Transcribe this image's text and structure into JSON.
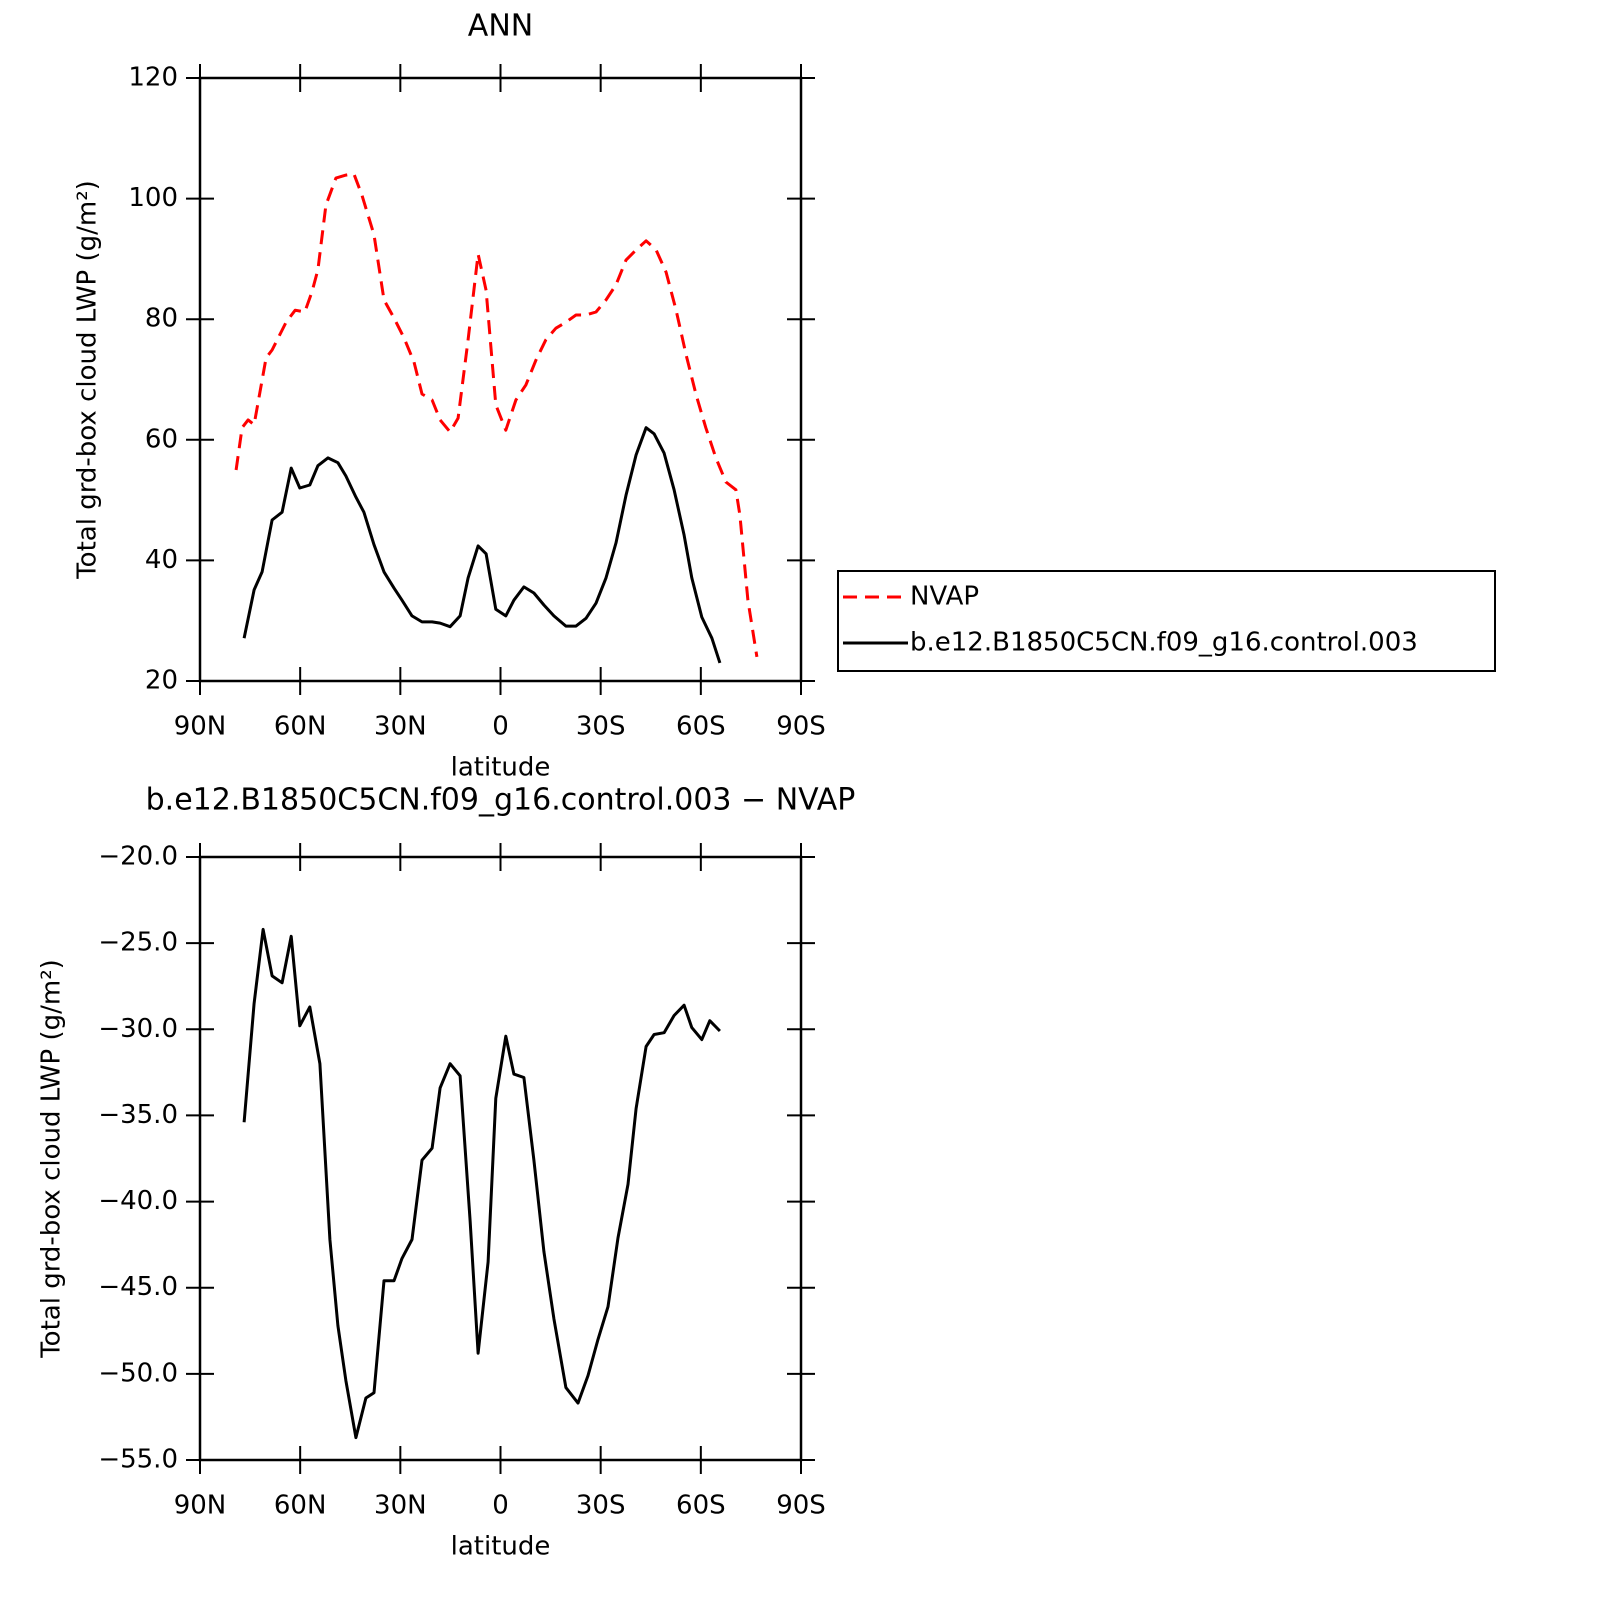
{
  "chart_data": [
    {
      "type": "line",
      "title": "ANN",
      "xlabel": "latitude",
      "ylabel": "Total grd-box cloud LWP (g/m²)",
      "xlim": [
        90,
        -90
      ],
      "xticks": [
        {
          "value": 90,
          "label": "90N"
        },
        {
          "value": 60,
          "label": "60N"
        },
        {
          "value": 30,
          "label": "30N"
        },
        0,
        {
          "value": -30,
          "label": "30S"
        },
        {
          "value": -60,
          "label": "60S"
        },
        {
          "value": -90,
          "label": "90S"
        }
      ],
      "ylim": [
        20,
        120
      ],
      "yticks": [
        20,
        40,
        60,
        80,
        100,
        120
      ],
      "legend": "right",
      "series": [
        {
          "name": "NVAP",
          "color": "#ff0000",
          "style": "dashed",
          "x": [
            79.2,
            77.4,
            75.6,
            73.8,
            70.2,
            68.4,
            64.2,
            61.5,
            58.6,
            56.5,
            54.7,
            52.3,
            49.3,
            46.3,
            43.9,
            41.5,
            37.9,
            34.9,
            31.9,
            28.9,
            25.9,
            23.5,
            20.5,
            18.1,
            15.1,
            12.7,
            9.7,
            6.7,
            4.3,
            1.4,
            -1.6,
            -4.6,
            -7.6,
            -10.6,
            -13.6,
            -16.6,
            -19.6,
            -22.6,
            -25.6,
            -28.6,
            -31.6,
            -34.6,
            -37.6,
            -40.6,
            -43.6,
            -46.6,
            -49.6,
            -52.6,
            -55.6,
            -58.6,
            -61.5,
            -64.5,
            -67.5,
            -70.5,
            -71.7,
            -74.1,
            -76.8
          ],
          "values": [
            55.0,
            62.0,
            63.3,
            62.5,
            73.6,
            74.9,
            79.5,
            81.5,
            81.2,
            84.5,
            88.2,
            98.9,
            103.4,
            103.9,
            104.1,
            100.6,
            94.0,
            83.2,
            80.2,
            76.9,
            72.9,
            67.6,
            66.6,
            63.3,
            61.3,
            63.6,
            76.6,
            90.8,
            84.8,
            65.8,
            61.6,
            66.6,
            69.1,
            73.2,
            76.6,
            78.5,
            79.5,
            80.7,
            80.7,
            81.2,
            83.2,
            85.7,
            89.8,
            91.5,
            93.0,
            91.5,
            87.8,
            81.5,
            74.1,
            67.4,
            62.0,
            57.0,
            53.0,
            51.7,
            47.5,
            33.4,
            24.0
          ]
        },
        {
          "name": "b.e12.B1850C5CN.f09_g16.control.003",
          "color": "#000000",
          "style": "solid",
          "x": [
            76.8,
            73.8,
            71.4,
            68.4,
            65.4,
            62.7,
            60.1,
            57.1,
            54.7,
            51.7,
            48.7,
            46.3,
            43.3,
            40.9,
            37.9,
            34.9,
            31.9,
            29.5,
            26.5,
            23.5,
            20.5,
            18.1,
            15.1,
            12.1,
            9.7,
            6.7,
            4.3,
            1.4,
            -1.6,
            -4.0,
            -7.0,
            -10.0,
            -13.0,
            -16.0,
            -19.6,
            -22.6,
            -25.6,
            -28.6,
            -31.6,
            -34.6,
            -37.6,
            -40.6,
            -43.6,
            -46.0,
            -49.0,
            -52.0,
            -55.0,
            -57.3,
            -60.3,
            -63.3,
            -65.7
          ],
          "values": [
            27.1,
            35.1,
            38.1,
            46.7,
            48.0,
            55.3,
            52.0,
            52.5,
            55.7,
            57.0,
            56.2,
            54.0,
            50.5,
            48.0,
            42.6,
            38.1,
            35.4,
            33.4,
            30.8,
            29.8,
            29.8,
            29.6,
            29.0,
            30.8,
            37.1,
            42.4,
            41.1,
            31.9,
            30.8,
            33.4,
            35.6,
            34.6,
            32.6,
            30.8,
            29.1,
            29.1,
            30.4,
            32.9,
            37.1,
            42.9,
            50.8,
            57.5,
            62.0,
            61.0,
            57.8,
            51.7,
            44.2,
            37.1,
            30.6,
            27.1,
            23.0
          ]
        }
      ]
    },
    {
      "type": "line",
      "title": "b.e12.B1850C5CN.f09_g16.control.003 − NVAP",
      "xlabel": "latitude",
      "ylabel": "Total grd-box cloud LWP (g/m²)",
      "xlim": [
        90,
        -90
      ],
      "xticks": [
        {
          "value": 90,
          "label": "90N"
        },
        {
          "value": 60,
          "label": "60N"
        },
        {
          "value": 30,
          "label": "30N"
        },
        0,
        {
          "value": -30,
          "label": "30S"
        },
        {
          "value": -60,
          "label": "60S"
        },
        {
          "value": -90,
          "label": "90S"
        }
      ],
      "ylim": [
        -55,
        -20
      ],
      "yticks": [
        {
          "value": -55,
          "label": "−55.0"
        },
        {
          "value": -50,
          "label": "−50.0"
        },
        {
          "value": -45,
          "label": "−45.0"
        },
        {
          "value": -40,
          "label": "−40.0"
        },
        {
          "value": -35,
          "label": "−35.0"
        },
        {
          "value": -30,
          "label": "−30.0"
        },
        {
          "value": -25,
          "label": "−25.0"
        },
        {
          "value": -20,
          "label": "−20.0"
        }
      ],
      "color": "#000000",
      "x": [
        76.8,
        73.8,
        71.1,
        68.4,
        65.4,
        62.7,
        60.1,
        57.1,
        54.1,
        51.1,
        48.7,
        46.3,
        43.3,
        40.3,
        37.9,
        34.9,
        31.9,
        29.5,
        26.5,
        23.5,
        20.5,
        18.1,
        15.1,
        12.1,
        9.1,
        6.7,
        3.7,
        1.4,
        -1.6,
        -4.0,
        -7.0,
        -10.0,
        -13.0,
        -16.0,
        -19.6,
        -23.2,
        -26.2,
        -29.2,
        -32.2,
        -35.2,
        -38.2,
        -40.6,
        -43.6,
        -46.0,
        -49.0,
        -52.0,
        -55.0,
        -57.3,
        -60.3,
        -62.7,
        -65.7
      ],
      "values": [
        -35.4,
        -28.5,
        -24.2,
        -26.9,
        -27.3,
        -24.6,
        -29.8,
        -28.7,
        -32.0,
        -42.2,
        -47.2,
        -50.4,
        -53.7,
        -51.4,
        -51.1,
        -44.6,
        -44.6,
        -43.3,
        -42.2,
        -37.6,
        -36.9,
        -33.4,
        -32.0,
        -32.7,
        -41.1,
        -48.8,
        -43.5,
        -34.0,
        -30.4,
        -32.6,
        -32.8,
        -37.6,
        -42.9,
        -46.8,
        -50.8,
        -51.7,
        -50.1,
        -48.0,
        -46.1,
        -42.1,
        -39.0,
        -34.6,
        -31.0,
        -30.3,
        -30.2,
        -29.2,
        -28.6,
        -29.9,
        -30.6,
        -29.5,
        -30.1
      ]
    }
  ]
}
